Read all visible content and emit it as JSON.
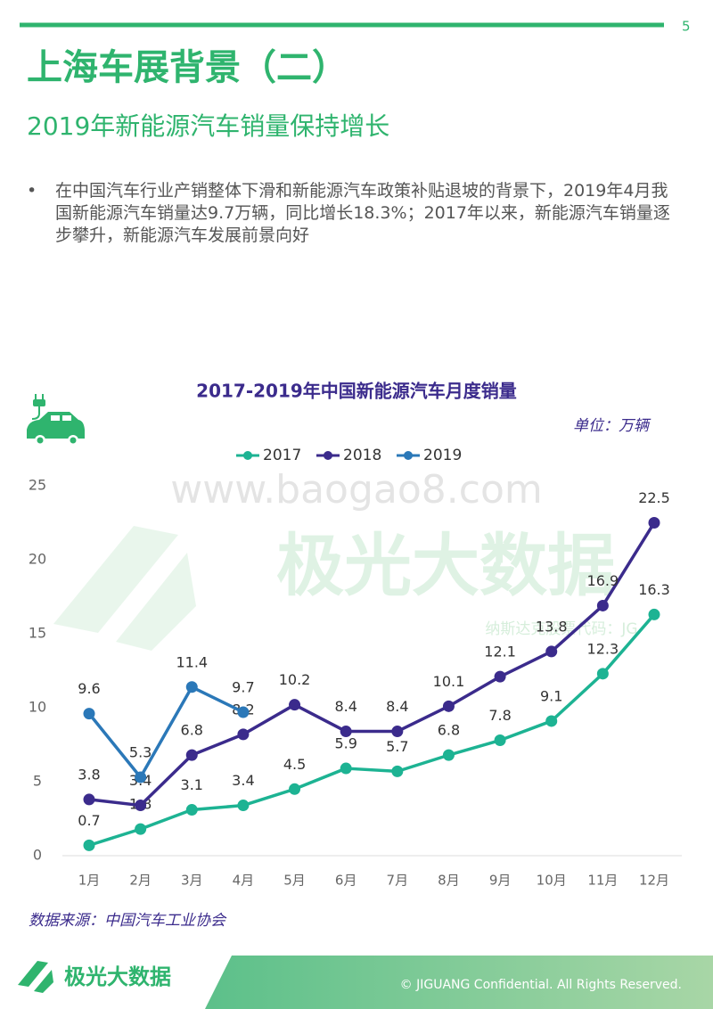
{
  "header": {
    "page_number": "5",
    "title": "上海车展背景（二）",
    "subtitle": "2019年新能源汽车销量保持增长"
  },
  "bullets": [
    "在中国汽车行业产销整体下滑和新能源汽车政策补贴退坡的背景下，2019年4月我国新能源汽车销量达9.7万辆，同比增长18.3%；2017年以来，新能源汽车销量逐步攀升，新能源汽车发展前景向好"
  ],
  "watermarks": [
    "www.baogao8.com",
    "极光大数据",
    "纳斯达克股票代码：JG"
  ],
  "chart_data": {
    "type": "line",
    "title": "2017-2019年中国新能源汽车月度销量",
    "unit": "单位：万辆",
    "categories": [
      "1月",
      "2月",
      "3月",
      "4月",
      "5月",
      "6月",
      "7月",
      "8月",
      "9月",
      "10月",
      "11月",
      "12月"
    ],
    "series": [
      {
        "name": "2017",
        "color": "#1db393",
        "values": [
          0.7,
          1.8,
          3.1,
          3.4,
          4.5,
          5.9,
          5.7,
          6.8,
          7.8,
          9.1,
          12.3,
          16.3
        ]
      },
      {
        "name": "2018",
        "color": "#3b2b8c",
        "values": [
          3.8,
          3.4,
          6.8,
          8.2,
          10.2,
          8.4,
          8.4,
          10.1,
          12.1,
          13.8,
          16.9,
          22.5
        ]
      },
      {
        "name": "2019",
        "color": "#2b78b8",
        "values": [
          9.6,
          5.3,
          11.4,
          9.7,
          null,
          null,
          null,
          null,
          null,
          null,
          null,
          null
        ]
      }
    ],
    "ylim": [
      0,
      25
    ],
    "yticks": [
      0,
      5,
      10,
      15,
      20,
      25
    ],
    "legend": "top",
    "grid": false,
    "source": "数据来源：中国汽车工业协会"
  },
  "footer": {
    "logo": "极光大数据",
    "copyright": "© JIGUANG Confidential. All Rights Reserved."
  }
}
